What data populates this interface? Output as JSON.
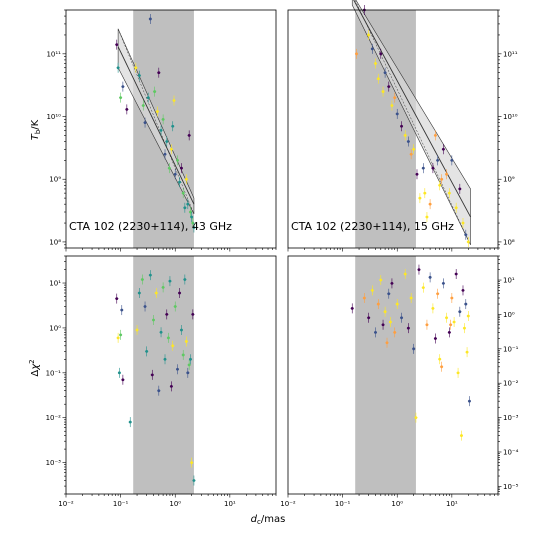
{
  "colors": {
    "axis": "#000000",
    "shade": "#bfbfbf",
    "band": "#d9d9d9",
    "fit": "#333333",
    "point_palette": [
      "#440154",
      "#3b528b",
      "#21918c",
      "#5ec962",
      "#fde725",
      "#ff9f40"
    ]
  },
  "axes_text": {
    "xlabel": "d_c/mas",
    "ylabel_top": "T_b/K",
    "ylabel_bottom": "Δχ²"
  },
  "chart_data": [
    {
      "id": "tb-43ghz",
      "type": "scatter",
      "label": "CTA 102 (2230+114), 43 GHz",
      "xscale": "log",
      "yscale": "log",
      "xlim": [
        0.01,
        70
      ],
      "ylim": [
        80000000.0,
        500000000000.0
      ],
      "x_ticks": [
        {
          "v": 0.01,
          "t": "10⁻²"
        },
        {
          "v": 0.1,
          "t": "10⁻¹"
        },
        {
          "v": 1,
          "t": "10⁰"
        },
        {
          "v": 10,
          "t": "10¹"
        }
      ],
      "y_ticks": [
        {
          "v": 100000000.0,
          "t": "10⁸"
        },
        {
          "v": 1000000000.0,
          "t": "10⁹"
        },
        {
          "v": 10000000000.0,
          "t": "10¹⁰"
        },
        {
          "v": 100000000000.0,
          "t": "10¹¹"
        }
      ],
      "y_tick_side": "left",
      "shaded_x": [
        0.17,
        2.2
      ],
      "fit": {
        "x": [
          0.09,
          2.2
        ],
        "center": [
          130000000000.0,
          400000000.0
        ],
        "upper": [
          250000000000.0,
          500000000.0
        ],
        "lower": [
          60000000000.0,
          280000000.0
        ]
      },
      "points": [
        {
          "x": 0.085,
          "y": 140000000000.0,
          "c": 0
        },
        {
          "x": 0.09,
          "y": 60000000000.0,
          "c": 2
        },
        {
          "x": 0.1,
          "y": 20000000000.0,
          "c": 3
        },
        {
          "x": 0.11,
          "y": 30000000000.0,
          "c": 1
        },
        {
          "x": 0.13,
          "y": 13000000000.0,
          "c": 0
        },
        {
          "x": 0.19,
          "y": 60000000000.0,
          "c": 4
        },
        {
          "x": 0.22,
          "y": 45000000000.0,
          "c": 2
        },
        {
          "x": 0.26,
          "y": 15000000000.0,
          "c": 3
        },
        {
          "x": 0.28,
          "y": 8000000000.0,
          "c": 1
        },
        {
          "x": 0.32,
          "y": 20000000000.0,
          "c": 2
        },
        {
          "x": 0.35,
          "y": 360000000000.0,
          "c": 1
        },
        {
          "x": 0.42,
          "y": 25000000000.0,
          "c": 3
        },
        {
          "x": 0.47,
          "y": 12000000000.0,
          "c": 4
        },
        {
          "x": 0.5,
          "y": 50000000000.0,
          "c": 0
        },
        {
          "x": 0.55,
          "y": 6000000000.0,
          "c": 2
        },
        {
          "x": 0.6,
          "y": 9000000000.0,
          "c": 3
        },
        {
          "x": 0.65,
          "y": 2500000000.0,
          "c": 1
        },
        {
          "x": 0.7,
          "y": 4000000000.0,
          "c": 2
        },
        {
          "x": 0.78,
          "y": 1500000000.0,
          "c": 3
        },
        {
          "x": 0.85,
          "y": 3000000000.0,
          "c": 4
        },
        {
          "x": 0.9,
          "y": 7000000000.0,
          "c": 2
        },
        {
          "x": 1.0,
          "y": 1200000000.0,
          "c": 1
        },
        {
          "x": 1.1,
          "y": 2000000000.0,
          "c": 3
        },
        {
          "x": 1.2,
          "y": 900000000.0,
          "c": 2
        },
        {
          "x": 1.3,
          "y": 1500000000.0,
          "c": 0
        },
        {
          "x": 1.4,
          "y": 600000000.0,
          "c": 3
        },
        {
          "x": 1.6,
          "y": 1000000000.0,
          "c": 4
        },
        {
          "x": 1.7,
          "y": 400000000.0,
          "c": 2
        },
        {
          "x": 1.8,
          "y": 5000000000.0,
          "c": 0
        },
        {
          "x": 1.9,
          "y": 300000000.0,
          "c": 3
        },
        {
          "x": 2.0,
          "y": 250000000.0,
          "c": 2
        },
        {
          "x": 2.1,
          "y": 200000000.0,
          "c": 3
        },
        {
          "x": 2.2,
          "y": 170000000.0,
          "c": 2
        },
        {
          "x": 1.5,
          "y": 350000000.0,
          "c": 2
        },
        {
          "x": 0.95,
          "y": 18000000000.0,
          "c": 4
        }
      ]
    },
    {
      "id": "tb-15ghz",
      "type": "scatter",
      "label": "CTA 102 (2230+114), 15 GHz",
      "xscale": "log",
      "yscale": "log",
      "xlim": [
        0.01,
        70
      ],
      "ylim": [
        80000000.0,
        500000000000.0
      ],
      "x_ticks": [
        {
          "v": 0.01,
          "t": "10⁻²"
        },
        {
          "v": 0.1,
          "t": "10⁻¹"
        },
        {
          "v": 1,
          "t": "10⁰"
        },
        {
          "v": 10,
          "t": "10¹"
        }
      ],
      "y_ticks": [
        {
          "v": 100000000.0,
          "t": "10⁸"
        },
        {
          "v": 1000000000.0,
          "t": "10⁹"
        },
        {
          "v": 10000000000.0,
          "t": "10¹⁰"
        },
        {
          "v": 100000000000.0,
          "t": "10¹¹"
        }
      ],
      "y_tick_side": "right",
      "shaded_x": [
        0.17,
        2.2
      ],
      "fit": {
        "x": [
          0.15,
          22
        ],
        "center": [
          800000000000.0,
          250000000.0
        ],
        "upper": [
          900000000000.0,
          700000000.0
        ],
        "lower": [
          600000000000.0,
          90000000.0
        ]
      },
      "points": [
        {
          "x": 0.18,
          "y": 100000000000.0,
          "c": 5
        },
        {
          "x": 0.25,
          "y": 500000000000.0,
          "c": 0
        },
        {
          "x": 0.3,
          "y": 200000000000.0,
          "c": 4
        },
        {
          "x": 0.35,
          "y": 120000000000.0,
          "c": 1
        },
        {
          "x": 0.4,
          "y": 70000000000.0,
          "c": 4
        },
        {
          "x": 0.45,
          "y": 40000000000.0,
          "c": 4
        },
        {
          "x": 0.5,
          "y": 100000000000.0,
          "c": 0
        },
        {
          "x": 0.55,
          "y": 25000000000.0,
          "c": 4
        },
        {
          "x": 0.6,
          "y": 50000000000.0,
          "c": 1
        },
        {
          "x": 0.7,
          "y": 30000000000.0,
          "c": 0
        },
        {
          "x": 0.8,
          "y": 15000000000.0,
          "c": 4
        },
        {
          "x": 0.9,
          "y": 20000000000.0,
          "c": 5
        },
        {
          "x": 1.0,
          "y": 11000000000.0,
          "c": 1
        },
        {
          "x": 1.2,
          "y": 7000000000.0,
          "c": 0
        },
        {
          "x": 1.4,
          "y": 5000000000.0,
          "c": 4
        },
        {
          "x": 1.6,
          "y": 4000000000.0,
          "c": 1
        },
        {
          "x": 1.8,
          "y": 2500000000.0,
          "c": 5
        },
        {
          "x": 2.0,
          "y": 3000000000.0,
          "c": 4
        },
        {
          "x": 2.3,
          "y": 1200000000.0,
          "c": 0
        },
        {
          "x": 2.6,
          "y": 500000000.0,
          "c": 4
        },
        {
          "x": 3.0,
          "y": 1500000000.0,
          "c": 1
        },
        {
          "x": 3.5,
          "y": 250000000.0,
          "c": 4
        },
        {
          "x": 4.0,
          "y": 400000000.0,
          "c": 5
        },
        {
          "x": 4.5,
          "y": 1500000000.0,
          "c": 0
        },
        {
          "x": 5.0,
          "y": 5000000000.0,
          "c": 5
        },
        {
          "x": 5.5,
          "y": 2000000000.0,
          "c": 1
        },
        {
          "x": 6.0,
          "y": 800000000.0,
          "c": 4
        },
        {
          "x": 7.0,
          "y": 3000000000.0,
          "c": 0
        },
        {
          "x": 8.0,
          "y": 1200000000.0,
          "c": 5
        },
        {
          "x": 9.0,
          "y": 600000000.0,
          "c": 4
        },
        {
          "x": 10.0,
          "y": 2000000000.0,
          "c": 1
        },
        {
          "x": 12.0,
          "y": 350000000.0,
          "c": 4
        },
        {
          "x": 14.0,
          "y": 700000000.0,
          "c": 0
        },
        {
          "x": 16.0,
          "y": 200000000.0,
          "c": 4
        },
        {
          "x": 18.0,
          "y": 130000000.0,
          "c": 1
        },
        {
          "x": 20.0,
          "y": 100000000.0,
          "c": 4
        },
        {
          "x": 6.5,
          "y": 1000000000.0,
          "c": 5
        },
        {
          "x": 3.2,
          "y": 600000000.0,
          "c": 4
        }
      ]
    },
    {
      "id": "chi2-43ghz",
      "type": "scatter",
      "xscale": "log",
      "yscale": "log",
      "xlim": [
        0.01,
        70
      ],
      "ylim": [
        0.0002,
        40
      ],
      "x_ticks": [
        {
          "v": 0.01,
          "t": "10⁻²"
        },
        {
          "v": 0.1,
          "t": "10⁻¹"
        },
        {
          "v": 1,
          "t": "10⁰"
        },
        {
          "v": 10,
          "t": "10¹"
        }
      ],
      "y_ticks": [
        {
          "v": 0.001,
          "t": "10⁻³"
        },
        {
          "v": 0.01,
          "t": "10⁻²"
        },
        {
          "v": 0.1,
          "t": "10⁻¹"
        },
        {
          "v": 1,
          "t": "10⁰"
        },
        {
          "v": 10,
          "t": "10¹"
        }
      ],
      "y_tick_side": "left",
      "shaded_x": [
        0.17,
        2.2
      ],
      "points": [
        {
          "x": 0.085,
          "y": 4.5,
          "c": 0
        },
        {
          "x": 0.09,
          "y": 0.6,
          "c": 4
        },
        {
          "x": 0.095,
          "y": 0.1,
          "c": 2
        },
        {
          "x": 0.1,
          "y": 0.7,
          "c": 3
        },
        {
          "x": 0.105,
          "y": 2.5,
          "c": 1
        },
        {
          "x": 0.11,
          "y": 0.07,
          "c": 0
        },
        {
          "x": 0.15,
          "y": 0.008,
          "c": 2
        },
        {
          "x": 0.2,
          "y": 0.9,
          "c": 4
        },
        {
          "x": 0.22,
          "y": 6,
          "c": 2
        },
        {
          "x": 0.25,
          "y": 12,
          "c": 3
        },
        {
          "x": 0.28,
          "y": 3,
          "c": 1
        },
        {
          "x": 0.3,
          "y": 0.3,
          "c": 2
        },
        {
          "x": 0.35,
          "y": 15,
          "c": 2
        },
        {
          "x": 0.38,
          "y": 0.09,
          "c": 0
        },
        {
          "x": 0.4,
          "y": 1.5,
          "c": 3
        },
        {
          "x": 0.45,
          "y": 6,
          "c": 4
        },
        {
          "x": 0.5,
          "y": 0.04,
          "c": 1
        },
        {
          "x": 0.55,
          "y": 0.8,
          "c": 2
        },
        {
          "x": 0.6,
          "y": 8,
          "c": 3
        },
        {
          "x": 0.65,
          "y": 0.2,
          "c": 2
        },
        {
          "x": 0.7,
          "y": 2,
          "c": 0
        },
        {
          "x": 0.75,
          "y": 0.6,
          "c": 3
        },
        {
          "x": 0.8,
          "y": 11,
          "c": 2
        },
        {
          "x": 0.85,
          "y": 0.05,
          "c": 0
        },
        {
          "x": 0.9,
          "y": 0.4,
          "c": 4
        },
        {
          "x": 1.0,
          "y": 3,
          "c": 3
        },
        {
          "x": 1.1,
          "y": 0.12,
          "c": 1
        },
        {
          "x": 1.2,
          "y": 6,
          "c": 0
        },
        {
          "x": 1.3,
          "y": 0.9,
          "c": 2
        },
        {
          "x": 1.4,
          "y": 0.25,
          "c": 3
        },
        {
          "x": 1.5,
          "y": 12,
          "c": 2
        },
        {
          "x": 1.6,
          "y": 0.5,
          "c": 4
        },
        {
          "x": 1.7,
          "y": 0.1,
          "c": 1
        },
        {
          "x": 1.8,
          "y": 0.15,
          "c": 3
        },
        {
          "x": 1.9,
          "y": 0.2,
          "c": 2
        },
        {
          "x": 2.0,
          "y": 0.001,
          "c": 4
        },
        {
          "x": 2.1,
          "y": 2,
          "c": 0
        },
        {
          "x": 2.2,
          "y": 0.0004,
          "c": 2
        }
      ]
    },
    {
      "id": "chi2-15ghz",
      "type": "scatter",
      "xscale": "log",
      "yscale": "log",
      "xlim": [
        0.01,
        70
      ],
      "ylim": [
        6e-06,
        50
      ],
      "x_ticks": [
        {
          "v": 0.01,
          "t": "10⁻²"
        },
        {
          "v": 0.1,
          "t": "10⁻¹"
        },
        {
          "v": 1,
          "t": "10⁰"
        },
        {
          "v": 10,
          "t": "10¹"
        }
      ],
      "y_ticks": [
        {
          "v": 1e-05,
          "t": "10⁻⁵"
        },
        {
          "v": 0.0001,
          "t": "10⁻⁴"
        },
        {
          "v": 0.001,
          "t": "10⁻³"
        },
        {
          "v": 0.01,
          "t": "10⁻²"
        },
        {
          "v": 0.1,
          "t": "10⁻¹"
        },
        {
          "v": 1,
          "t": "10⁰"
        },
        {
          "v": 10,
          "t": "10¹"
        }
      ],
      "y_tick_side": "right",
      "shaded_x": [
        0.17,
        2.2
      ],
      "points": [
        {
          "x": 0.15,
          "y": 1.5,
          "c": 0
        },
        {
          "x": 0.25,
          "y": 3,
          "c": 5
        },
        {
          "x": 0.3,
          "y": 0.8,
          "c": 0
        },
        {
          "x": 0.35,
          "y": 5,
          "c": 4
        },
        {
          "x": 0.4,
          "y": 0.3,
          "c": 1
        },
        {
          "x": 0.45,
          "y": 2,
          "c": 5
        },
        {
          "x": 0.5,
          "y": 10,
          "c": 4
        },
        {
          "x": 0.55,
          "y": 0.5,
          "c": 0
        },
        {
          "x": 0.6,
          "y": 1.2,
          "c": 4
        },
        {
          "x": 0.65,
          "y": 0.15,
          "c": 5
        },
        {
          "x": 0.7,
          "y": 4,
          "c": 1
        },
        {
          "x": 0.75,
          "y": 0.6,
          "c": 4
        },
        {
          "x": 0.8,
          "y": 8,
          "c": 0
        },
        {
          "x": 0.9,
          "y": 0.3,
          "c": 5
        },
        {
          "x": 1.0,
          "y": 2,
          "c": 4
        },
        {
          "x": 1.2,
          "y": 0.8,
          "c": 1
        },
        {
          "x": 1.4,
          "y": 15,
          "c": 4
        },
        {
          "x": 1.6,
          "y": 0.4,
          "c": 0
        },
        {
          "x": 1.8,
          "y": 3,
          "c": 4
        },
        {
          "x": 2.0,
          "y": 0.1,
          "c": 1
        },
        {
          "x": 2.2,
          "y": 0.001,
          "c": 4
        },
        {
          "x": 2.5,
          "y": 20,
          "c": 0
        },
        {
          "x": 3.0,
          "y": 6,
          "c": 4
        },
        {
          "x": 3.5,
          "y": 0.5,
          "c": 5
        },
        {
          "x": 4.0,
          "y": 12,
          "c": 1
        },
        {
          "x": 4.5,
          "y": 1.5,
          "c": 4
        },
        {
          "x": 5.0,
          "y": 0.2,
          "c": 0
        },
        {
          "x": 5.5,
          "y": 4,
          "c": 5
        },
        {
          "x": 6.0,
          "y": 0.05,
          "c": 4
        },
        {
          "x": 7.0,
          "y": 8,
          "c": 1
        },
        {
          "x": 8.0,
          "y": 0.8,
          "c": 4
        },
        {
          "x": 9.0,
          "y": 0.3,
          "c": 0
        },
        {
          "x": 10.0,
          "y": 3,
          "c": 5
        },
        {
          "x": 11.0,
          "y": 0.6,
          "c": 4
        },
        {
          "x": 12.0,
          "y": 15,
          "c": 0
        },
        {
          "x": 13.0,
          "y": 0.02,
          "c": 4
        },
        {
          "x": 14.0,
          "y": 1.2,
          "c": 1
        },
        {
          "x": 15.0,
          "y": 0.0003,
          "c": 4
        },
        {
          "x": 16.0,
          "y": 5,
          "c": 0
        },
        {
          "x": 17.0,
          "y": 0.4,
          "c": 4
        },
        {
          "x": 18.0,
          "y": 2,
          "c": 1
        },
        {
          "x": 19.0,
          "y": 0.08,
          "c": 4
        },
        {
          "x": 20.0,
          "y": 0.9,
          "c": 4
        },
        {
          "x": 21.0,
          "y": 0.003,
          "c": 1
        },
        {
          "x": 6.5,
          "y": 0.03,
          "c": 5
        },
        {
          "x": 9.5,
          "y": 0.5,
          "c": 5
        }
      ]
    }
  ]
}
